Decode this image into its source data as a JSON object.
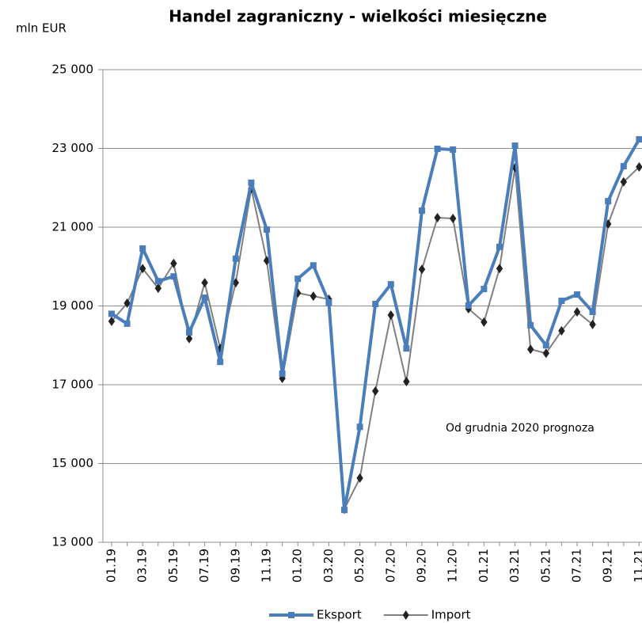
{
  "chart_data": {
    "type": "line",
    "title": "Handel zagraniczny - wielkości miesięczne",
    "y_label": "mln EUR",
    "annotation": "Od grudnia 2020 prognoza",
    "categories": [
      "01.19",
      null,
      "03.19",
      null,
      "05.19",
      null,
      "07.19",
      null,
      "09.19",
      null,
      "11.19",
      null,
      "01.20",
      null,
      "03.20",
      null,
      "05.20",
      null,
      "07.20",
      null,
      "09.20",
      null,
      "11.20",
      null,
      "01.21",
      null,
      "03.21",
      null,
      "05.21",
      null,
      "07.21",
      null,
      "09.21",
      null,
      "11.21"
    ],
    "series": [
      {
        "name": "Eksport",
        "color": "#4a7ebb",
        "values": [
          18800,
          18550,
          20460,
          19630,
          19750,
          18330,
          19210,
          17580,
          20200,
          22130,
          20940,
          17280,
          19690,
          20030,
          19090,
          13820,
          15930,
          19050,
          19550,
          17920,
          21420,
          22990,
          22970,
          19010,
          19430,
          20500,
          23070,
          18510,
          18000,
          19130,
          19290,
          18850,
          21660,
          22550,
          23230
        ]
      },
      {
        "name": "Import",
        "color": "#808080",
        "values": [
          18610,
          19070,
          19950,
          19450,
          20080,
          18170,
          19590,
          17920,
          19590,
          21980,
          20150,
          17160,
          19330,
          19250,
          19170,
          13840,
          14630,
          16840,
          18770,
          17080,
          19930,
          21240,
          21220,
          18930,
          18590,
          19950,
          22510,
          17900,
          17800,
          18370,
          18850,
          18530,
          21080,
          22150,
          22530
        ]
      }
    ],
    "ylim": [
      13000,
      25000
    ],
    "yticks": [
      {
        "value": 13000,
        "label": "13 000"
      },
      {
        "value": 15000,
        "label": "15 000"
      },
      {
        "value": 17000,
        "label": "17 000"
      },
      {
        "value": 19000,
        "label": "19 000"
      },
      {
        "value": 21000,
        "label": "21 000"
      },
      {
        "value": 23000,
        "label": "23 000"
      },
      {
        "value": 25000,
        "label": "25 000"
      }
    ],
    "grid": true
  }
}
